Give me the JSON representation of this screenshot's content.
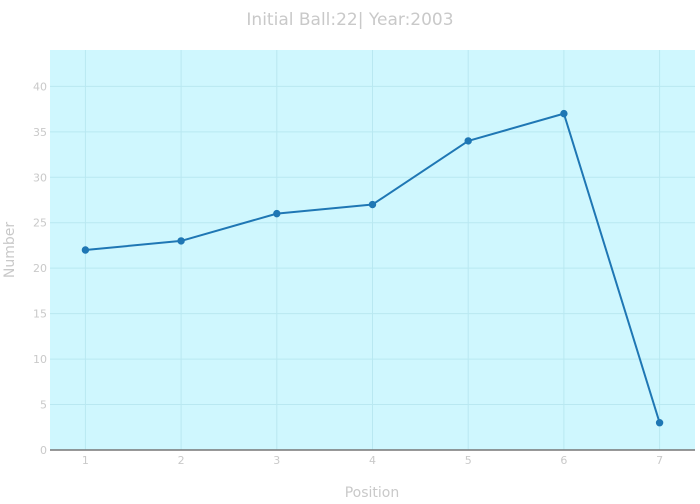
{
  "chart_data": {
    "type": "line",
    "title": "Initial Ball:22| Year:2003",
    "xlabel": "Position",
    "ylabel": "Number",
    "x": [
      1,
      2,
      3,
      4,
      5,
      6,
      7
    ],
    "values": [
      22,
      23,
      26,
      27,
      34,
      37,
      3
    ],
    "xlim": [
      0.63,
      7.37
    ],
    "ylim": [
      0,
      44
    ],
    "xticks": [
      1,
      2,
      3,
      4,
      5,
      6,
      7
    ],
    "yticks": [
      0,
      5,
      10,
      15,
      20,
      25,
      30,
      35,
      40
    ],
    "grid": true,
    "colors": {
      "plot_background": "#cff7fe",
      "line": "#1f77b4",
      "grid": "#b9e8f1",
      "text": "#c9c9c9",
      "axis": "#777777"
    }
  }
}
